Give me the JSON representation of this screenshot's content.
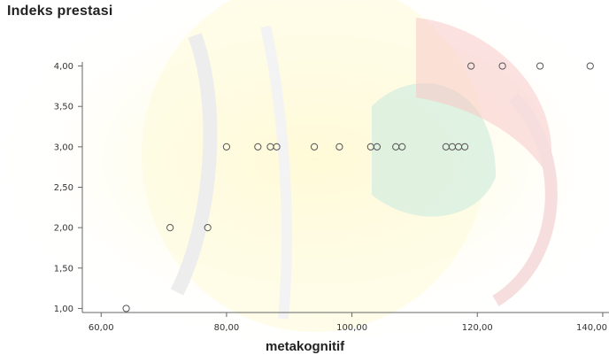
{
  "chart_data": {
    "type": "scatter",
    "title": "",
    "ylabel": "Indeks prestasi",
    "xlabel": "metakognitif",
    "xlim": [
      57,
      141
    ],
    "ylim": [
      0.95,
      4.05
    ],
    "xticks": [
      60,
      80,
      100,
      120,
      140
    ],
    "xtick_labels": [
      "60,00",
      "80,00",
      "100,00",
      "120,00",
      "140,00"
    ],
    "yticks": [
      1,
      1.5,
      2,
      2.5,
      3,
      3.5,
      4
    ],
    "ytick_labels": [
      "1,00",
      "1,50",
      "2,00",
      "2,50",
      "3,00",
      "3,50",
      "4,00"
    ],
    "grid": false,
    "marker": "open-circle",
    "points": [
      {
        "x": 64,
        "y": 1
      },
      {
        "x": 71,
        "y": 2
      },
      {
        "x": 77,
        "y": 2
      },
      {
        "x": 80,
        "y": 3
      },
      {
        "x": 85,
        "y": 3
      },
      {
        "x": 87,
        "y": 3
      },
      {
        "x": 88,
        "y": 3
      },
      {
        "x": 94,
        "y": 3
      },
      {
        "x": 98,
        "y": 3
      },
      {
        "x": 103,
        "y": 3
      },
      {
        "x": 104,
        "y": 3
      },
      {
        "x": 107,
        "y": 3
      },
      {
        "x": 108,
        "y": 3
      },
      {
        "x": 115,
        "y": 3
      },
      {
        "x": 116,
        "y": 3
      },
      {
        "x": 117,
        "y": 3
      },
      {
        "x": 118,
        "y": 3
      },
      {
        "x": 119,
        "y": 4
      },
      {
        "x": 124,
        "y": 4
      },
      {
        "x": 130,
        "y": 4
      },
      {
        "x": 138,
        "y": 4
      }
    ],
    "colors": {
      "marker": "#555555",
      "axis": "#666666",
      "text": "#222222"
    }
  }
}
